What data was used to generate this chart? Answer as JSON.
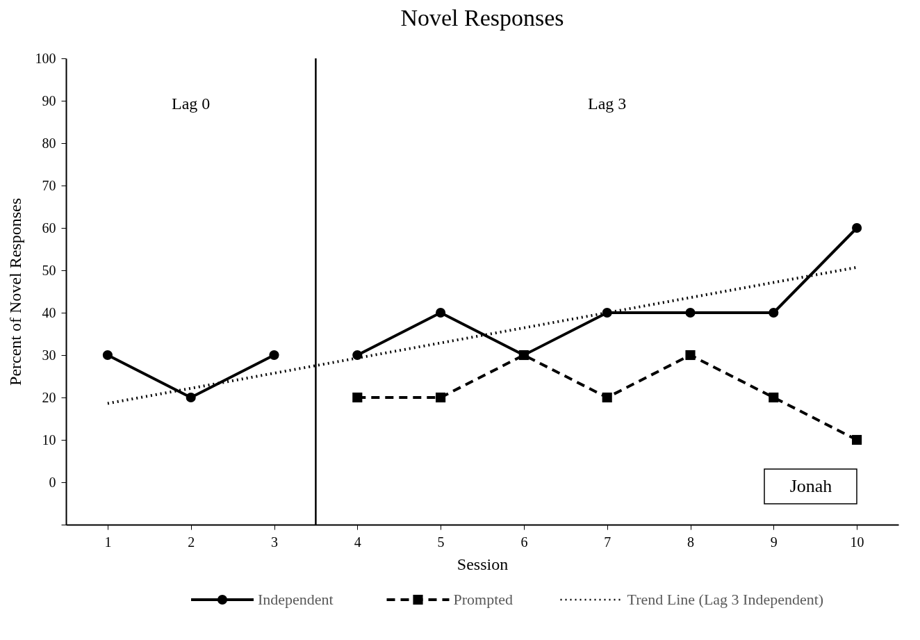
{
  "chart_data": {
    "type": "line",
    "title": "Novel Responses",
    "xlabel": "Session",
    "ylabel": "Percent of Novel Responses",
    "x": [
      1,
      2,
      3,
      4,
      5,
      6,
      7,
      8,
      9,
      10
    ],
    "xlim": [
      0.5,
      10.5
    ],
    "xticks": [
      1,
      2,
      3,
      4,
      5,
      6,
      7,
      8,
      9,
      10
    ],
    "ylim": [
      -10,
      100
    ],
    "yticks": [
      {
        "value": -10,
        "label": null
      },
      0,
      10,
      20,
      30,
      40,
      50,
      60,
      70,
      80,
      90,
      100
    ],
    "series": [
      {
        "name": "Independent",
        "color": "#000000",
        "marker": "circle",
        "line_style": "solid",
        "values": [
          30,
          20,
          30,
          30,
          40,
          30,
          40,
          40,
          40,
          60
        ]
      },
      {
        "name": "Prompted",
        "color": "#000000",
        "marker": "square",
        "line_style": "dashed",
        "values": [
          null,
          null,
          null,
          20,
          20,
          30,
          20,
          30,
          20,
          10
        ]
      },
      {
        "name": "Trend Line (Lag 3 Independent)",
        "color": "#000000",
        "marker": "none",
        "line_style": "dotted",
        "x": [
          1,
          10
        ],
        "values": [
          18.6,
          50.7
        ]
      }
    ],
    "ref_lines": [
      {
        "axis": "x",
        "value": 3.5,
        "color": "#000000",
        "line_style": "solid"
      }
    ],
    "annotations": [
      "Lag 0",
      "Lag 3",
      "Jonah"
    ],
    "grid": false,
    "legend": "bottom"
  }
}
